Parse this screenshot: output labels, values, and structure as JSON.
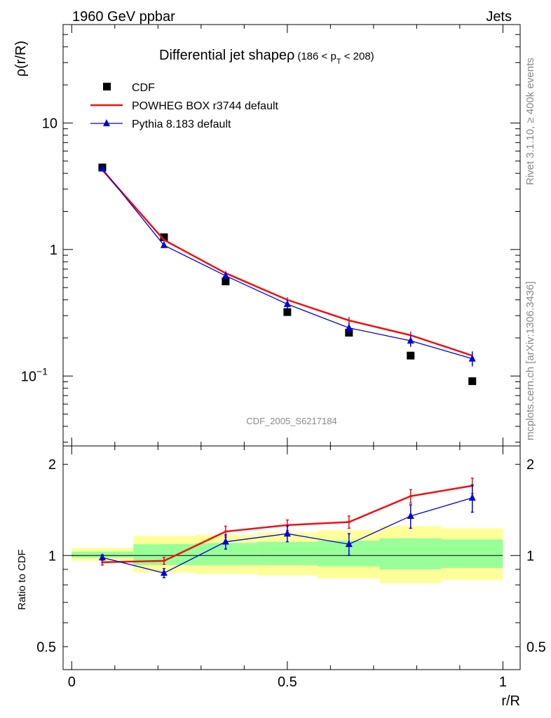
{
  "header": {
    "left": "1960 GeV ppbar",
    "right": "Jets"
  },
  "side_labels": {
    "rivet": "Rivet 3.1.10, ≥ 400k events",
    "mcplots": "mcplots.cern.ch [arXiv:1306.3436]"
  },
  "chart_data": [
    {
      "type": "line",
      "name": "main",
      "title": "Differential jet shapeρ",
      "title_suffix": "(186 < p",
      "title_sub": "T",
      "title_end": " < 208)",
      "ylabel": "ρ(r/R)",
      "yscale": "log",
      "ylim": [
        0.028,
        60
      ],
      "xlim": [
        -0.02,
        1.04
      ],
      "yticks": [
        {
          "value": 10,
          "label": "10"
        },
        {
          "value": 1,
          "label": "1"
        },
        {
          "value": 0.1,
          "label": "10",
          "exp": "−1"
        }
      ],
      "watermark": "CDF_2005_S6217184",
      "legend": [
        {
          "label": "CDF",
          "style": "square",
          "color": "#000000"
        },
        {
          "label": "POWHEG BOX r3744 default",
          "style": "line",
          "color": "#ee1111"
        },
        {
          "label": "Pythia 8.183 default",
          "style": "triangle-line",
          "color": "#0000dd"
        }
      ],
      "series": [
        {
          "name": "CDF",
          "color": "#000000",
          "x": [
            0.071,
            0.214,
            0.357,
            0.5,
            0.643,
            0.786,
            0.929
          ],
          "y": [
            4.45,
            1.25,
            0.56,
            0.32,
            0.22,
            0.145,
            0.091
          ]
        },
        {
          "name": "POWHEG BOX r3744 default",
          "color": "#ee1111",
          "x": [
            0.071,
            0.214,
            0.357,
            0.5,
            0.643,
            0.786,
            0.929
          ],
          "y": [
            4.25,
            1.19,
            0.65,
            0.4,
            0.275,
            0.21,
            0.145
          ],
          "err": [
            0.08,
            0.03,
            0.025,
            0.02,
            0.018,
            0.015,
            0.012
          ]
        },
        {
          "name": "Pythia 8.183 default",
          "color": "#0000dd",
          "x": [
            0.071,
            0.214,
            0.357,
            0.5,
            0.643,
            0.786,
            0.929
          ],
          "y": [
            4.35,
            1.08,
            0.62,
            0.37,
            0.24,
            0.19,
            0.137
          ],
          "err": [
            0.08,
            0.04,
            0.04,
            0.03,
            0.025,
            0.02,
            0.018
          ]
        }
      ]
    },
    {
      "type": "line",
      "name": "ratio",
      "ylabel": "Ratio to CDF",
      "xlabel": "r/R",
      "yscale": "log",
      "ylim": [
        0.42,
        2.3
      ],
      "xlim": [
        -0.02,
        1.04
      ],
      "xticks": [
        {
          "value": 0,
          "label": "0"
        },
        {
          "value": 0.5,
          "label": "0.5"
        },
        {
          "value": 1,
          "label": "1"
        }
      ],
      "yticks": [
        {
          "value": 2,
          "label": "2"
        },
        {
          "value": 1,
          "label": "1"
        },
        {
          "value": 0.5,
          "label": "0.5"
        }
      ],
      "bands": [
        {
          "x0": 0.0,
          "x1": 0.143,
          "stat": [
            0.985,
            1.03
          ],
          "total": [
            0.96,
            1.06
          ]
        },
        {
          "x0": 0.143,
          "x1": 0.286,
          "stat": [
            0.93,
            1.09
          ],
          "total": [
            0.88,
            1.16
          ]
        },
        {
          "x0": 0.286,
          "x1": 0.429,
          "stat": [
            0.93,
            1.1
          ],
          "total": [
            0.87,
            1.17
          ]
        },
        {
          "x0": 0.429,
          "x1": 0.571,
          "stat": [
            0.93,
            1.11
          ],
          "total": [
            0.86,
            1.19
          ]
        },
        {
          "x0": 0.571,
          "x1": 0.714,
          "stat": [
            0.92,
            1.12
          ],
          "total": [
            0.84,
            1.21
          ]
        },
        {
          "x0": 0.714,
          "x1": 0.857,
          "stat": [
            0.9,
            1.14
          ],
          "total": [
            0.81,
            1.25
          ]
        },
        {
          "x0": 0.857,
          "x1": 1.0,
          "stat": [
            0.91,
            1.13
          ],
          "total": [
            0.83,
            1.23
          ]
        }
      ],
      "series": [
        {
          "name": "POWHEG BOX r3744 default",
          "color": "#ee1111",
          "x": [
            0.071,
            0.214,
            0.357,
            0.5,
            0.643,
            0.786,
            0.929
          ],
          "y": [
            0.95,
            0.96,
            1.2,
            1.26,
            1.29,
            1.57,
            1.7
          ],
          "err": [
            0.02,
            0.025,
            0.05,
            0.05,
            0.06,
            0.08,
            0.1
          ]
        },
        {
          "name": "Pythia 8.183 default",
          "color": "#0000dd",
          "x": [
            0.071,
            0.214,
            0.357,
            0.5,
            0.643,
            0.786,
            0.929
          ],
          "y": [
            0.985,
            0.875,
            1.11,
            1.18,
            1.09,
            1.35,
            1.55
          ],
          "err": [
            0.02,
            0.03,
            0.06,
            0.07,
            0.09,
            0.12,
            0.16
          ]
        }
      ]
    }
  ]
}
